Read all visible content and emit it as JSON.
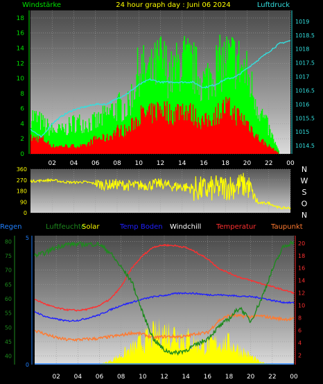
{
  "header": {
    "left_label": "Windstärke",
    "title": "24 hour graph day : Juni 06 2024",
    "right_label": "Luftdruck"
  },
  "legend": {
    "regen": "Regen",
    "luftfeuchte": "Luftfeuchte",
    "solar": "Solar",
    "temp_boden": "Temp Boden",
    "windchill": "Windchill",
    "temperatur": "Temperatur",
    "taupunkt": "Taupunkt"
  },
  "colors": {
    "wind_gust": "#00ff00",
    "wind_avg": "#ff0000",
    "pressure": "#33e0e0",
    "direction": "#ffff00",
    "temperatur": "#ff3030",
    "temp_boden": "#2020ff",
    "taupunkt": "#ff7a30",
    "windchill": "#ff4040",
    "luftfeuchte": "#1e8a1e",
    "solar": "#ffff00",
    "regen": "#2080ff"
  },
  "chart_data": [
    {
      "type": "area",
      "title": "24 hour graph day : Juni 06 2024",
      "left_axis_label": "Windstärke",
      "right_axis_label": "Luftdruck",
      "x_ticks": [
        "02",
        "04",
        "06",
        "08",
        "10",
        "12",
        "14",
        "16",
        "18",
        "20",
        "22",
        "00"
      ],
      "y_left_ticks": [
        0,
        2,
        4,
        6,
        8,
        10,
        12,
        14,
        16,
        18
      ],
      "y_left_range": [
        0,
        19
      ],
      "y_right_ticks": [
        1014.5,
        1015,
        1015.5,
        1016,
        1016.5,
        1017,
        1017.5,
        1018,
        1018.5,
        1019
      ],
      "y_right_range": [
        1014.2,
        1019.4
      ],
      "hours": [
        0,
        1,
        2,
        3,
        4,
        5,
        6,
        7,
        8,
        9,
        10,
        11,
        12,
        13,
        14,
        15,
        16,
        17,
        18,
        19,
        20,
        21,
        22,
        23,
        24
      ],
      "series": [
        {
          "key": "gust",
          "values": [
            5,
            4,
            3,
            3,
            4,
            4,
            4,
            5,
            6,
            6,
            11,
            10,
            12,
            10,
            12,
            11,
            9,
            11,
            12,
            12,
            10,
            6,
            3,
            0,
            0
          ]
        },
        {
          "key": "avg",
          "values": [
            2,
            2,
            1,
            1,
            1,
            1,
            2,
            2,
            3,
            3,
            5,
            5,
            6,
            5,
            6,
            5,
            4,
            5,
            6,
            5,
            4,
            2,
            1,
            0,
            0
          ]
        },
        {
          "key": "pressure",
          "values": [
            1015.1,
            1014.8,
            1015.3,
            1015.6,
            1015.8,
            1015.9,
            1016.0,
            1016.0,
            1016.2,
            1016.4,
            1016.7,
            1016.9,
            1016.8,
            1016.8,
            1016.8,
            1016.8,
            1016.6,
            1016.7,
            1016.9,
            1017.0,
            1017.3,
            1017.6,
            1017.9,
            1018.2,
            1018.3
          ]
        }
      ]
    },
    {
      "type": "line",
      "title": "",
      "y_left_ticks": [
        0,
        90,
        180,
        270,
        360
      ],
      "y_left_range": [
        0,
        360
      ],
      "y_right_ticks": [
        "N",
        "W",
        "S",
        "O",
        "N"
      ],
      "hours": [
        0,
        1,
        2,
        3,
        4,
        5,
        6,
        7,
        8,
        9,
        10,
        11,
        12,
        13,
        14,
        15,
        16,
        17,
        18,
        19,
        20,
        21,
        22,
        23,
        24
      ],
      "series": [
        {
          "key": "direction",
          "values": [
            260,
            265,
            270,
            255,
            250,
            255,
            240,
            230,
            235,
            225,
            225,
            230,
            240,
            220,
            215,
            200,
            190,
            200,
            210,
            220,
            230,
            80,
            80,
            40,
            40
          ]
        }
      ]
    },
    {
      "type": "line",
      "title": "",
      "x_ticks": [
        "02",
        "04",
        "06",
        "08",
        "10",
        "12",
        "14",
        "16",
        "18",
        "20",
        "22",
        "00"
      ],
      "y_left_ticks": [
        40,
        45,
        50,
        55,
        60,
        65,
        70,
        75,
        80
      ],
      "y_left_range": [
        37,
        82
      ],
      "y_inner_ticks": [
        0,
        5
      ],
      "y_right_ticks": [
        2,
        4,
        6,
        8,
        10,
        12,
        14,
        16,
        18,
        20
      ],
      "y_right_range": [
        0.5,
        21.2
      ],
      "hours": [
        0,
        1,
        2,
        3,
        4,
        5,
        6,
        7,
        8,
        9,
        10,
        11,
        12,
        13,
        14,
        15,
        16,
        17,
        18,
        19,
        20,
        21,
        22,
        23,
        24
      ],
      "series": [
        {
          "key": "luftfeuchte",
          "values": [
            75,
            76,
            78,
            79,
            79,
            79,
            79,
            76,
            71,
            66,
            55,
            46,
            42,
            41,
            42,
            44,
            46,
            50,
            53,
            57,
            52,
            60,
            70,
            78,
            80
          ]
        },
        {
          "key": "temperatur",
          "values": [
            11,
            10.2,
            9.6,
            9.3,
            9.2,
            9.4,
            10,
            11,
            13,
            16,
            18,
            19.4,
            19.7,
            19.6,
            19.3,
            18.5,
            17.5,
            16,
            15.2,
            14.5,
            14,
            13.5,
            13,
            12.5,
            12
          ]
        },
        {
          "key": "temp_boden",
          "values": [
            9,
            8.2,
            7.8,
            7.5,
            7.6,
            8,
            8.5,
            9.3,
            10,
            10.5,
            11,
            11.4,
            11.6,
            11.9,
            12,
            11.9,
            11.7,
            11.7,
            11.6,
            11.5,
            11.4,
            11.2,
            10.8,
            10.5,
            10.4
          ]
        },
        {
          "key": "taupunkt",
          "values": [
            6,
            5.4,
            4.8,
            4.5,
            4.5,
            4.6,
            4.7,
            5,
            5.2,
            5.6,
            5.4,
            4.8,
            5,
            5,
            5,
            5.5,
            5.6,
            7.5,
            8.4,
            8.3,
            8.2,
            8.3,
            8,
            7.8,
            7.8
          ]
        },
        {
          "key": "solar",
          "values": [
            0,
            0,
            0,
            0,
            0,
            0,
            0,
            0.6,
            1.5,
            2.5,
            3.6,
            4.6,
            5.2,
            4.9,
            4.2,
            3.3,
            3.0,
            3.6,
            3.4,
            2.4,
            1.3,
            0.3,
            0.05,
            0,
            0
          ]
        }
      ]
    }
  ]
}
